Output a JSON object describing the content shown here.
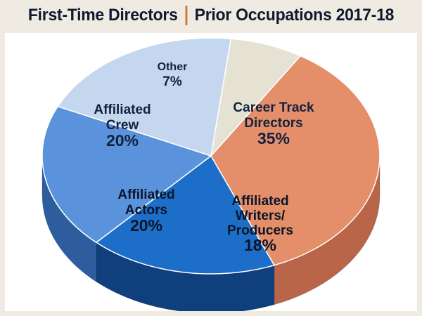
{
  "header": {
    "title_left": "First-Time Directors",
    "title_right": "Prior Occupations 2017-18",
    "separator_color": "#d0792d"
  },
  "chart_data": {
    "type": "pie",
    "title": "First-Time Directors | Prior Occupations 2017-18",
    "style": "3d-exploded-tilted",
    "slices": [
      {
        "label_lines": [
          "Career Track",
          "Directors"
        ],
        "label": "Career Track Directors",
        "value": 35,
        "value_label": "35%",
        "color": "#e48e6a",
        "side_color": "#b8654a"
      },
      {
        "label_lines": [
          "Affiliated",
          "Writers/",
          "Producers"
        ],
        "label": "Affiliated Writers/Producers",
        "value": 18,
        "value_label": "18%",
        "color": "#1d6ec8",
        "side_color": "#0f3f7c"
      },
      {
        "label_lines": [
          "Affiliated",
          "Actors"
        ],
        "label": "Affiliated Actors",
        "value": 20,
        "value_label": "20%",
        "color": "#5a92dc",
        "side_color": "#2e5d9e"
      },
      {
        "label_lines": [
          "Affiliated",
          "Crew"
        ],
        "label": "Affiliated Crew",
        "value": 20,
        "value_label": "20%",
        "color": "#c5d7ef",
        "side_color": "#8fa6c6"
      },
      {
        "label_lines": [
          "Other"
        ],
        "label": "Other",
        "value": 7,
        "value_label": "7%",
        "color": "#e6e2d3",
        "side_color": "#b4b0a2"
      }
    ]
  }
}
